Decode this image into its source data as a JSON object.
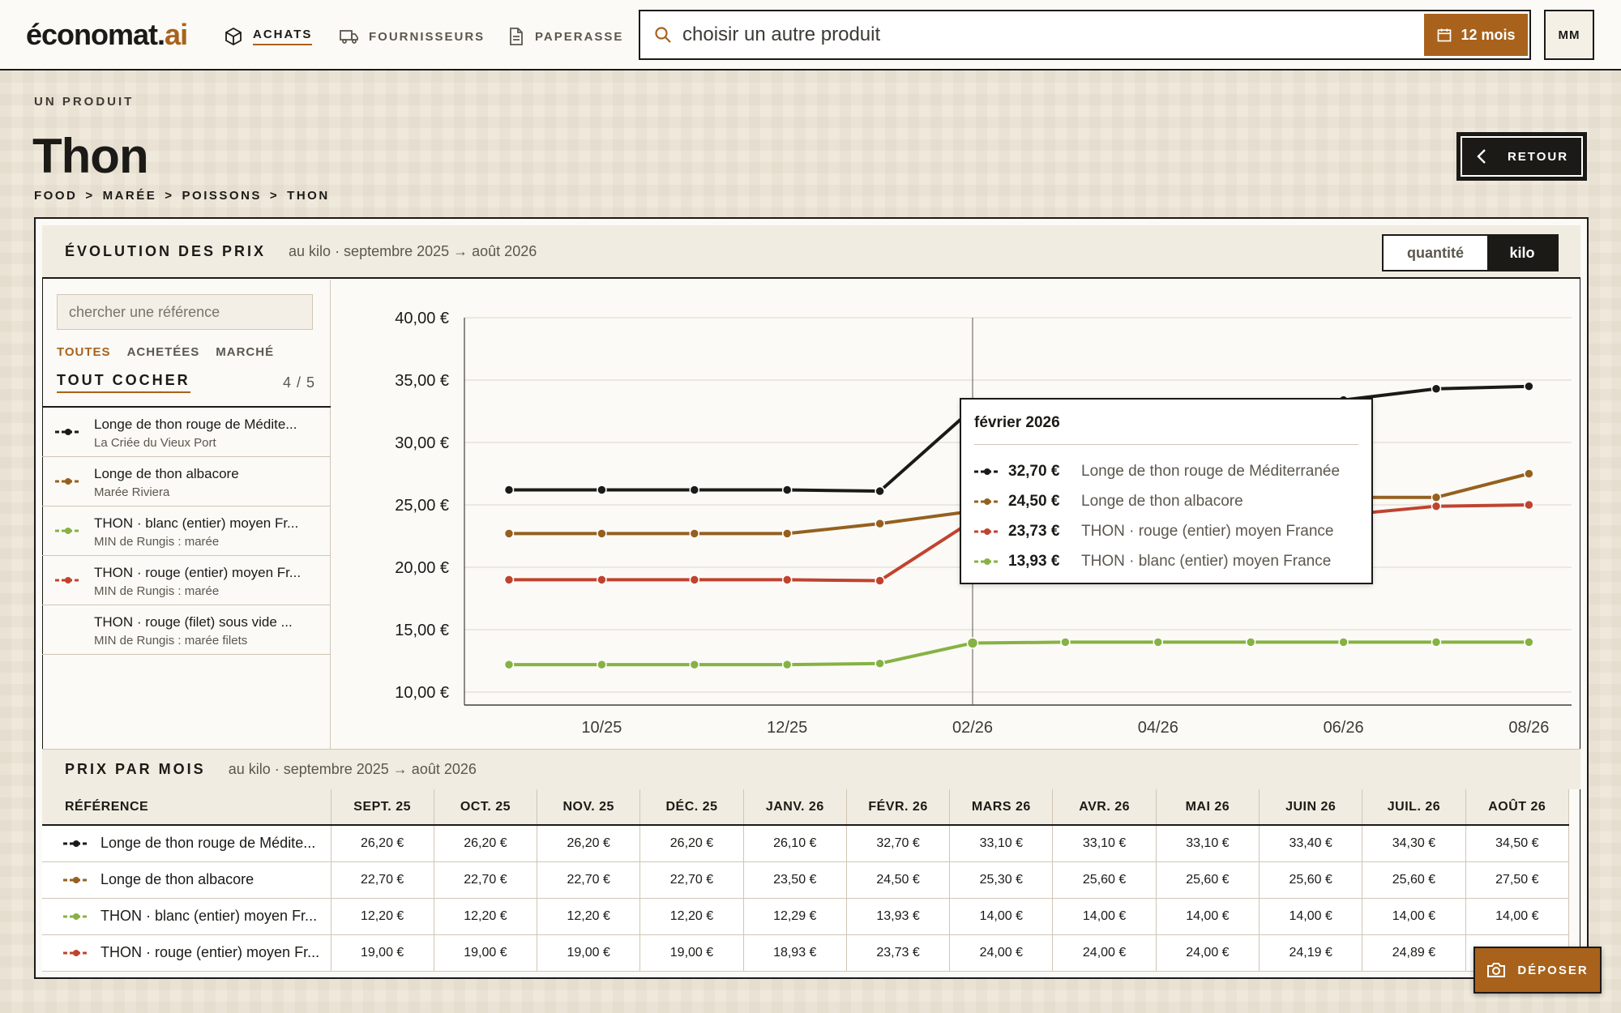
{
  "app": {
    "logo_main": "économat.",
    "logo_accent": "ai"
  },
  "nav": [
    {
      "label": "ACHATS",
      "icon": "box-icon",
      "active": true
    },
    {
      "label": "FOURNISSEURS",
      "icon": "truck-icon",
      "active": false
    },
    {
      "label": "PAPERASSE",
      "icon": "document-icon",
      "active": false
    }
  ],
  "search": {
    "placeholder": "choisir un autre produit",
    "value": ""
  },
  "period": {
    "label": "12 mois",
    "icon": "calendar-icon"
  },
  "user": {
    "initials": "MM"
  },
  "header": {
    "eyebrow": "UN PRODUIT",
    "title": "Thon",
    "breadcrumb": [
      "FOOD",
      ">",
      "MARÉE",
      ">",
      "POISSONS",
      ">",
      "THON"
    ],
    "back_label": "RETOUR"
  },
  "evolution": {
    "title": "ÉVOLUTION DES PRIX",
    "subtitle": "au kilo · septembre 2025 → août 2026",
    "toggle": {
      "quantity": "quantité",
      "kilo": "kilo",
      "selected": "kilo"
    }
  },
  "references_panel": {
    "search_placeholder": "chercher une référence",
    "filters": [
      "TOUTES",
      "ACHETÉES",
      "MARCHÉ"
    ],
    "active_filter": "TOUTES",
    "check_all": "TOUT COCHER",
    "count": "4 / 5",
    "items": [
      {
        "name": "Longe de thon rouge de Médite...",
        "source": "La Criée du Vieux Port",
        "color": "#1c1a17",
        "checked": true
      },
      {
        "name": "Longe de thon albacore",
        "source": "Marée Riviera",
        "color": "#95601f",
        "checked": true
      },
      {
        "name": "THON · blanc (entier) moyen Fr...",
        "source": "MIN de Rungis : marée",
        "color": "#86b243",
        "checked": true
      },
      {
        "name": "THON · rouge (entier) moyen Fr...",
        "source": "MIN de Rungis : marée",
        "color": "#c0432f",
        "checked": true
      },
      {
        "name": "THON · rouge (filet) sous vide ...",
        "source": "MIN de Rungis : marée filets",
        "color": "",
        "checked": false
      }
    ]
  },
  "chart_data": {
    "type": "line",
    "x": [
      "2025-09",
      "2025-10",
      "2025-11",
      "2025-12",
      "2026-01",
      "2026-02",
      "2026-03",
      "2026-04",
      "2026-05",
      "2026-06",
      "2026-07",
      "2026-08"
    ],
    "x_tick_labels": [
      "10/25",
      "12/25",
      "02/26",
      "04/26",
      "06/26",
      "08/26"
    ],
    "y_tick_labels": [
      "40,00 €",
      "35,00 €",
      "30,00 €",
      "25,00 €",
      "20,00 €",
      "15,00 €",
      "10,00 €"
    ],
    "ylim": [
      10,
      40
    ],
    "grid": true,
    "series": [
      {
        "name": "Longe de thon rouge de Méditerranée",
        "color": "#1c1a17",
        "values": [
          26.2,
          26.2,
          26.2,
          26.2,
          26.1,
          32.7,
          33.1,
          33.1,
          33.1,
          33.4,
          34.3,
          34.5
        ]
      },
      {
        "name": "Longe de thon albacore",
        "color": "#95601f",
        "values": [
          22.7,
          22.7,
          22.7,
          22.7,
          23.5,
          24.5,
          25.3,
          25.6,
          25.6,
          25.6,
          25.6,
          27.5
        ]
      },
      {
        "name": "THON · rouge (entier) moyen France",
        "color": "#c0432f",
        "values": [
          19.0,
          19.0,
          19.0,
          19.0,
          18.93,
          23.73,
          24.0,
          24.0,
          24.0,
          24.19,
          24.89,
          25.0
        ]
      },
      {
        "name": "THON · blanc (entier) moyen France",
        "color": "#86b243",
        "values": [
          12.2,
          12.2,
          12.2,
          12.2,
          12.29,
          13.93,
          14.0,
          14.0,
          14.0,
          14.0,
          14.0,
          14.0
        ]
      }
    ],
    "highlight_index": 5
  },
  "tooltip": {
    "title": "février 2026",
    "rows": [
      {
        "value": "32,70 €",
        "name": "Longe de thon rouge de Méditerranée",
        "color": "#1c1a17"
      },
      {
        "value": "24,50 €",
        "name": "Longe de thon albacore",
        "color": "#95601f"
      },
      {
        "value": "23,73 €",
        "name": "THON · rouge (entier) moyen France",
        "color": "#c0432f"
      },
      {
        "value": "13,93 €",
        "name": "THON · blanc (entier) moyen France",
        "color": "#86b243"
      }
    ]
  },
  "monthly": {
    "title": "PRIX PAR MOIS",
    "subtitle": "au kilo · septembre 2025 → août 2026",
    "ref_header": "RÉFÉRENCE",
    "months": [
      "SEPT. 25",
      "OCT. 25",
      "NOV. 25",
      "DÉC. 25",
      "JANV. 26",
      "FÉVR. 26",
      "MARS 26",
      "AVR. 26",
      "MAI 26",
      "JUIN 26",
      "JUIL. 26",
      "AOÛT 26"
    ],
    "rows": [
      {
        "name": "Longe de thon rouge de Médite...",
        "color": "#1c1a17",
        "cells": [
          "26,20 €",
          "26,20 €",
          "26,20 €",
          "26,20 €",
          "26,10 €",
          "32,70 €",
          "33,10 €",
          "33,10 €",
          "33,10 €",
          "33,40 €",
          "34,30 €",
          "34,50 €"
        ]
      },
      {
        "name": "Longe de thon albacore",
        "color": "#95601f",
        "cells": [
          "22,70 €",
          "22,70 €",
          "22,70 €",
          "22,70 €",
          "23,50 €",
          "24,50 €",
          "25,30 €",
          "25,60 €",
          "25,60 €",
          "25,60 €",
          "25,60 €",
          "27,50 €"
        ]
      },
      {
        "name": "THON · blanc (entier) moyen Fr...",
        "color": "#86b243",
        "cells": [
          "12,20 €",
          "12,20 €",
          "12,20 €",
          "12,20 €",
          "12,29 €",
          "13,93 €",
          "14,00 €",
          "14,00 €",
          "14,00 €",
          "14,00 €",
          "14,00 €",
          "14,00 €"
        ]
      },
      {
        "name": "THON · rouge (entier) moyen Fr...",
        "color": "#c0432f",
        "cells": [
          "19,00 €",
          "19,00 €",
          "19,00 €",
          "19,00 €",
          "18,93 €",
          "23,73 €",
          "24,00 €",
          "24,00 €",
          "24,00 €",
          "24,19 €",
          "24,89 €",
          "25,00 €"
        ]
      }
    ]
  },
  "deposit": {
    "label": "DÉPOSER",
    "icon": "camera-icon"
  },
  "colors": {
    "accent": "#a8621c",
    "ink": "#1c1a17",
    "panel": "#f1ece1"
  }
}
